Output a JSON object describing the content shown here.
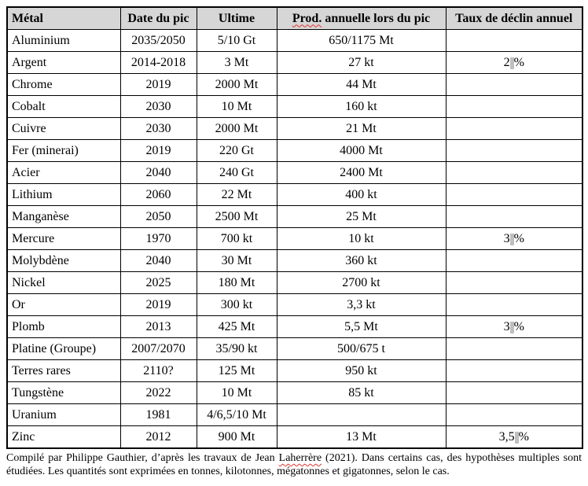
{
  "table": {
    "headers": {
      "metal": "Métal",
      "date": "Date du pic",
      "ultime": "Ultime",
      "prod_misspelled": "Prod.",
      "prod_rest": " annuelle lors du pic",
      "taux": "Taux de déclin annuel"
    },
    "percent_sign": "%",
    "rows": [
      {
        "metal": "Aluminium",
        "date": "2035/2050",
        "ultime": "5/10 Gt",
        "prod": "650/1175 Mt",
        "taux": ""
      },
      {
        "metal": "Argent",
        "date": "2014-2018",
        "ultime": "3 Mt",
        "prod": "27 kt",
        "taux": "2"
      },
      {
        "metal": "Chrome",
        "date": "2019",
        "ultime": "2000 Mt",
        "prod": "44 Mt",
        "taux": ""
      },
      {
        "metal": "Cobalt",
        "date": "2030",
        "ultime": "10 Mt",
        "prod": "160 kt",
        "taux": ""
      },
      {
        "metal": "Cuivre",
        "date": "2030",
        "ultime": "2000 Mt",
        "prod": "21 Mt",
        "taux": ""
      },
      {
        "metal": "Fer (minerai)",
        "date": "2019",
        "ultime": "220 Gt",
        "prod": "4000 Mt",
        "taux": ""
      },
      {
        "metal": "Acier",
        "date": "2040",
        "ultime": "240 Gt",
        "prod": "2400 Mt",
        "taux": ""
      },
      {
        "metal": "Lithium",
        "date": "2060",
        "ultime": "22 Mt",
        "prod": "400 kt",
        "taux": ""
      },
      {
        "metal": "Manganèse",
        "date": "2050",
        "ultime": "2500 Mt",
        "prod": "25 Mt",
        "taux": ""
      },
      {
        "metal": "Mercure",
        "date": "1970",
        "ultime": "700 kt",
        "prod": "10 kt",
        "taux": "3"
      },
      {
        "metal": "Molybdène",
        "date": "2040",
        "ultime": "30 Mt",
        "prod": "360 kt",
        "taux": ""
      },
      {
        "metal": "Nickel",
        "date": "2025",
        "ultime": "180 Mt",
        "prod": "2700 kt",
        "taux": ""
      },
      {
        "metal": "Or",
        "date": "2019",
        "ultime": "300 kt",
        "prod": "3,3 kt",
        "taux": ""
      },
      {
        "metal": "Plomb",
        "date": "2013",
        "ultime": "425 Mt",
        "prod": "5,5 Mt",
        "taux": "3"
      },
      {
        "metal": "Platine (Groupe)",
        "date": "2007/2070",
        "ultime": "35/90 kt",
        "prod": "500/675 t",
        "taux": ""
      },
      {
        "metal": "Terres rares",
        "date": "2110?",
        "ultime": "125 Mt",
        "prod": "950 kt",
        "taux": ""
      },
      {
        "metal": "Tungstène",
        "date": "2022",
        "ultime": "10 Mt",
        "prod": "85 kt",
        "taux": ""
      },
      {
        "metal": "Uranium",
        "date": "1981",
        "ultime": "4/6,5/10 Mt",
        "prod": "",
        "taux": ""
      },
      {
        "metal": "Zinc",
        "date": "2012",
        "ultime": "900 Mt",
        "prod": "13 Mt",
        "taux": "3,5"
      }
    ]
  },
  "footer": {
    "before": "Compilé par Philippe Gauthier, d’après les travaux de Jean ",
    "misspelled": "Laherrère",
    "after": " (2021). Dans certains cas, des hypothèses multiples sont étudiées. Les quantités sont exprimées en tonnes, kilotonnes, mégatonnes et gigatonnes, selon le cas."
  },
  "colors": {
    "header_bg": "#d6d6d6",
    "border": "#000000",
    "squiggle": "#e3342f",
    "nbsp_highlight": "#bfbfbf"
  }
}
